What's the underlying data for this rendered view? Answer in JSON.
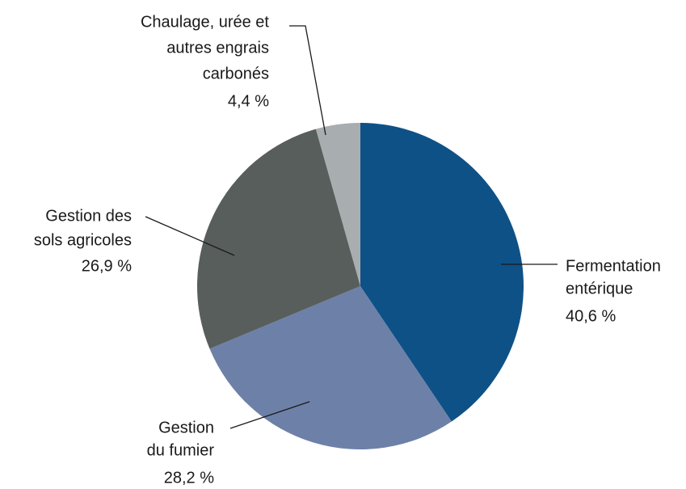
{
  "chart_data": {
    "type": "pie",
    "categories": [
      [
        "Fermentation",
        "entérique"
      ],
      [
        "Gestion",
        "du fumier"
      ],
      [
        "Gestion des",
        "sols agricoles"
      ],
      [
        "Chaulage, urée et",
        "autres engrais",
        "carbonés"
      ]
    ],
    "values": [
      40.6,
      28.2,
      26.9,
      4.4
    ],
    "value_labels": [
      "40,6 %",
      "28,2 %",
      "26,9 %",
      "4,4 %"
    ],
    "colors": [
      "#0e5186",
      "#6d80a8",
      "#585e5b",
      "#a8adb0"
    ]
  }
}
